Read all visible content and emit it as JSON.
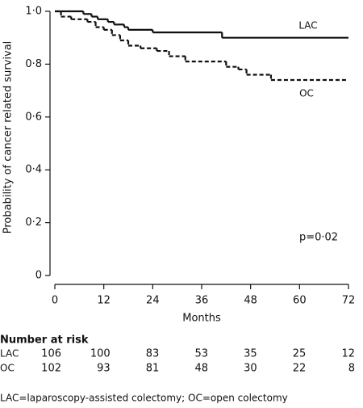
{
  "chart_data": {
    "type": "line",
    "y_label": "Probability of cancer related survival",
    "x_label": "Months",
    "xlim": [
      0,
      72
    ],
    "xticks": [
      0,
      12,
      24,
      36,
      48,
      60,
      72
    ],
    "ylim": [
      0,
      1
    ],
    "yticks": [
      {
        "value": 0,
        "label": "0"
      },
      {
        "value": 0.2,
        "label": "0·2"
      },
      {
        "value": 0.4,
        "label": "0·4"
      },
      {
        "value": 0.6,
        "label": "0·6"
      },
      {
        "value": 0.8,
        "label": "0·8"
      },
      {
        "value": 1,
        "label": "1·0"
      }
    ],
    "series": [
      {
        "name": "LAC",
        "color": "#111111",
        "line_style": "solid",
        "x": [
          0,
          7,
          9,
          10.5,
          13,
          14.5,
          17,
          18,
          24,
          41
        ],
        "values": [
          1,
          0.99,
          0.98,
          0.97,
          0.96,
          0.95,
          0.94,
          0.93,
          0.92,
          0.9
        ]
      },
      {
        "name": "OC",
        "color": "#111111",
        "line_style": "dashed",
        "x": [
          0,
          1.5,
          4,
          8,
          10,
          12,
          14,
          16,
          18,
          21,
          25,
          28,
          32,
          42,
          45,
          47,
          53
        ],
        "values": [
          1,
          0.98,
          0.97,
          0.96,
          0.94,
          0.93,
          0.91,
          0.89,
          0.87,
          0.86,
          0.85,
          0.83,
          0.81,
          0.79,
          0.78,
          0.76,
          0.74
        ]
      }
    ],
    "annotation": "p=0·02",
    "risk_table": {
      "title": "Number at risk",
      "rows": [
        {
          "name": "LAC",
          "values": [
            106,
            100,
            83,
            53,
            35,
            25,
            12
          ]
        },
        {
          "name": "OC",
          "values": [
            102,
            93,
            81,
            48,
            30,
            22,
            8
          ]
        }
      ]
    },
    "footnote": "LAC=laparoscopy-assisted colectomy; OC=open colectomy"
  }
}
